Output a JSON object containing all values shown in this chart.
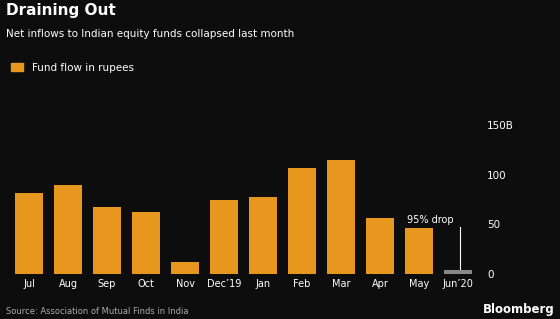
{
  "title": "Draining Out",
  "subtitle": "Net inflows to Indian equity funds collapsed last month",
  "legend_label": "Fund flow in rupees",
  "source": "Source: Association of Mutual Finds in India",
  "categories": [
    "Jul",
    "Aug",
    "Sep",
    "Oct",
    "Nov",
    "Dec’19",
    "Jan",
    "Feb",
    "Mar",
    "Apr",
    "May",
    "Jun’20"
  ],
  "values": [
    82,
    90,
    68,
    63,
    12,
    75,
    78,
    107,
    115,
    57,
    46,
    4
  ],
  "bar_color": "#E8971E",
  "jun_bar_color": "#888888",
  "background_color": "#0d0d0d",
  "text_color": "#ffffff",
  "grid_color": "#333333",
  "annotation_text": "95% drop",
  "ylim": [
    0,
    160
  ],
  "yticks": [
    0,
    50,
    100,
    150
  ],
  "ytick_labels": [
    "0",
    "50",
    "100",
    "150B"
  ]
}
